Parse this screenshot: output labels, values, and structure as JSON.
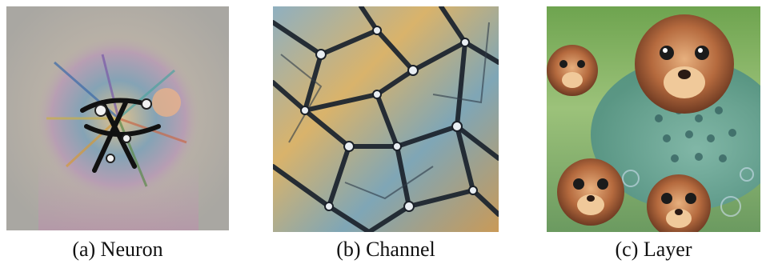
{
  "figure": {
    "panels": [
      {
        "caption": "(a) Neuron",
        "image": "neuron-visualization-image"
      },
      {
        "caption": "(b) Channel",
        "image": "channel-visualization-image"
      },
      {
        "caption": "(c) Layer",
        "image": "layer-visualization-image"
      }
    ]
  }
}
